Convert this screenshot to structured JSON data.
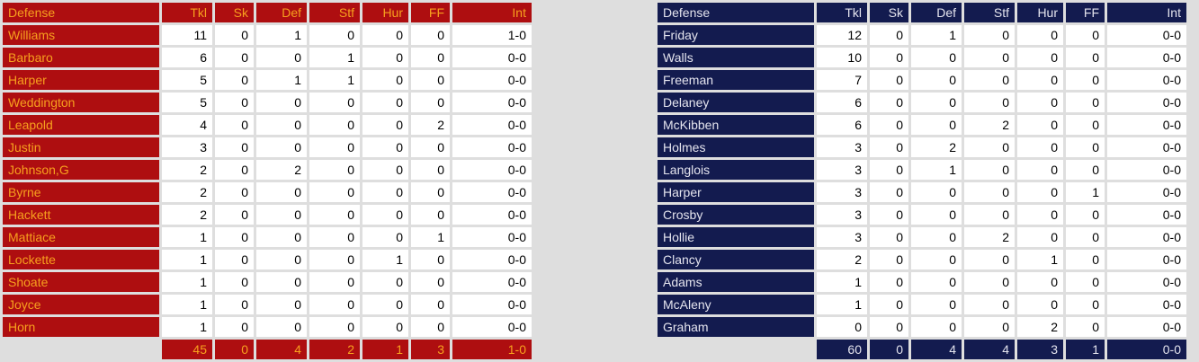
{
  "page": {
    "background": "#DEDEDE",
    "cell_bg": "#FFFFFF",
    "cell_text": "#000000"
  },
  "chart_data": [
    {
      "type": "table",
      "title": "Defense",
      "legend_position": "none",
      "theme": {
        "accent_bg": "#AE0E10",
        "accent_text": "#F7A01E"
      },
      "columns": [
        "Defense",
        "Tkl",
        "Sk",
        "Def",
        "Stf",
        "Hur",
        "FF",
        "Int"
      ],
      "rows": [
        [
          "Williams",
          "11",
          "0",
          "1",
          "0",
          "0",
          "0",
          "1-0"
        ],
        [
          "Barbaro",
          "6",
          "0",
          "0",
          "1",
          "0",
          "0",
          "0-0"
        ],
        [
          "Harper",
          "5",
          "0",
          "1",
          "1",
          "0",
          "0",
          "0-0"
        ],
        [
          "Weddington",
          "5",
          "0",
          "0",
          "0",
          "0",
          "0",
          "0-0"
        ],
        [
          "Leapold",
          "4",
          "0",
          "0",
          "0",
          "0",
          "2",
          "0-0"
        ],
        [
          "Justin",
          "3",
          "0",
          "0",
          "0",
          "0",
          "0",
          "0-0"
        ],
        [
          "Johnson,G",
          "2",
          "0",
          "2",
          "0",
          "0",
          "0",
          "0-0"
        ],
        [
          "Byrne",
          "2",
          "0",
          "0",
          "0",
          "0",
          "0",
          "0-0"
        ],
        [
          "Hackett",
          "2",
          "0",
          "0",
          "0",
          "0",
          "0",
          "0-0"
        ],
        [
          "Mattiace",
          "1",
          "0",
          "0",
          "0",
          "0",
          "1",
          "0-0"
        ],
        [
          "Lockette",
          "1",
          "0",
          "0",
          "0",
          "1",
          "0",
          "0-0"
        ],
        [
          "Shoate",
          "1",
          "0",
          "0",
          "0",
          "0",
          "0",
          "0-0"
        ],
        [
          "Joyce",
          "1",
          "0",
          "0",
          "0",
          "0",
          "0",
          "0-0"
        ],
        [
          "Horn",
          "1",
          "0",
          "0",
          "0",
          "0",
          "0",
          "0-0"
        ]
      ],
      "totals": [
        "45",
        "0",
        "4",
        "2",
        "1",
        "3",
        "1-0"
      ]
    },
    {
      "type": "table",
      "title": "Defense",
      "legend_position": "none",
      "theme": {
        "accent_bg": "#131B4F",
        "accent_text": "#E4E4EE"
      },
      "columns": [
        "Defense",
        "Tkl",
        "Sk",
        "Def",
        "Stf",
        "Hur",
        "FF",
        "Int"
      ],
      "rows": [
        [
          "Friday",
          "12",
          "0",
          "1",
          "0",
          "0",
          "0",
          "0-0"
        ],
        [
          "Walls",
          "10",
          "0",
          "0",
          "0",
          "0",
          "0",
          "0-0"
        ],
        [
          "Freeman",
          "7",
          "0",
          "0",
          "0",
          "0",
          "0",
          "0-0"
        ],
        [
          "Delaney",
          "6",
          "0",
          "0",
          "0",
          "0",
          "0",
          "0-0"
        ],
        [
          "McKibben",
          "6",
          "0",
          "0",
          "2",
          "0",
          "0",
          "0-0"
        ],
        [
          "Holmes",
          "3",
          "0",
          "2",
          "0",
          "0",
          "0",
          "0-0"
        ],
        [
          "Langlois",
          "3",
          "0",
          "1",
          "0",
          "0",
          "0",
          "0-0"
        ],
        [
          "Harper",
          "3",
          "0",
          "0",
          "0",
          "0",
          "1",
          "0-0"
        ],
        [
          "Crosby",
          "3",
          "0",
          "0",
          "0",
          "0",
          "0",
          "0-0"
        ],
        [
          "Hollie",
          "3",
          "0",
          "0",
          "2",
          "0",
          "0",
          "0-0"
        ],
        [
          "Clancy",
          "2",
          "0",
          "0",
          "0",
          "1",
          "0",
          "0-0"
        ],
        [
          "Adams",
          "1",
          "0",
          "0",
          "0",
          "0",
          "0",
          "0-0"
        ],
        [
          "McAleny",
          "1",
          "0",
          "0",
          "0",
          "0",
          "0",
          "0-0"
        ],
        [
          "Graham",
          "0",
          "0",
          "0",
          "0",
          "2",
          "0",
          "0-0"
        ]
      ],
      "totals": [
        "60",
        "0",
        "4",
        "4",
        "3",
        "1",
        "0-0"
      ]
    }
  ]
}
